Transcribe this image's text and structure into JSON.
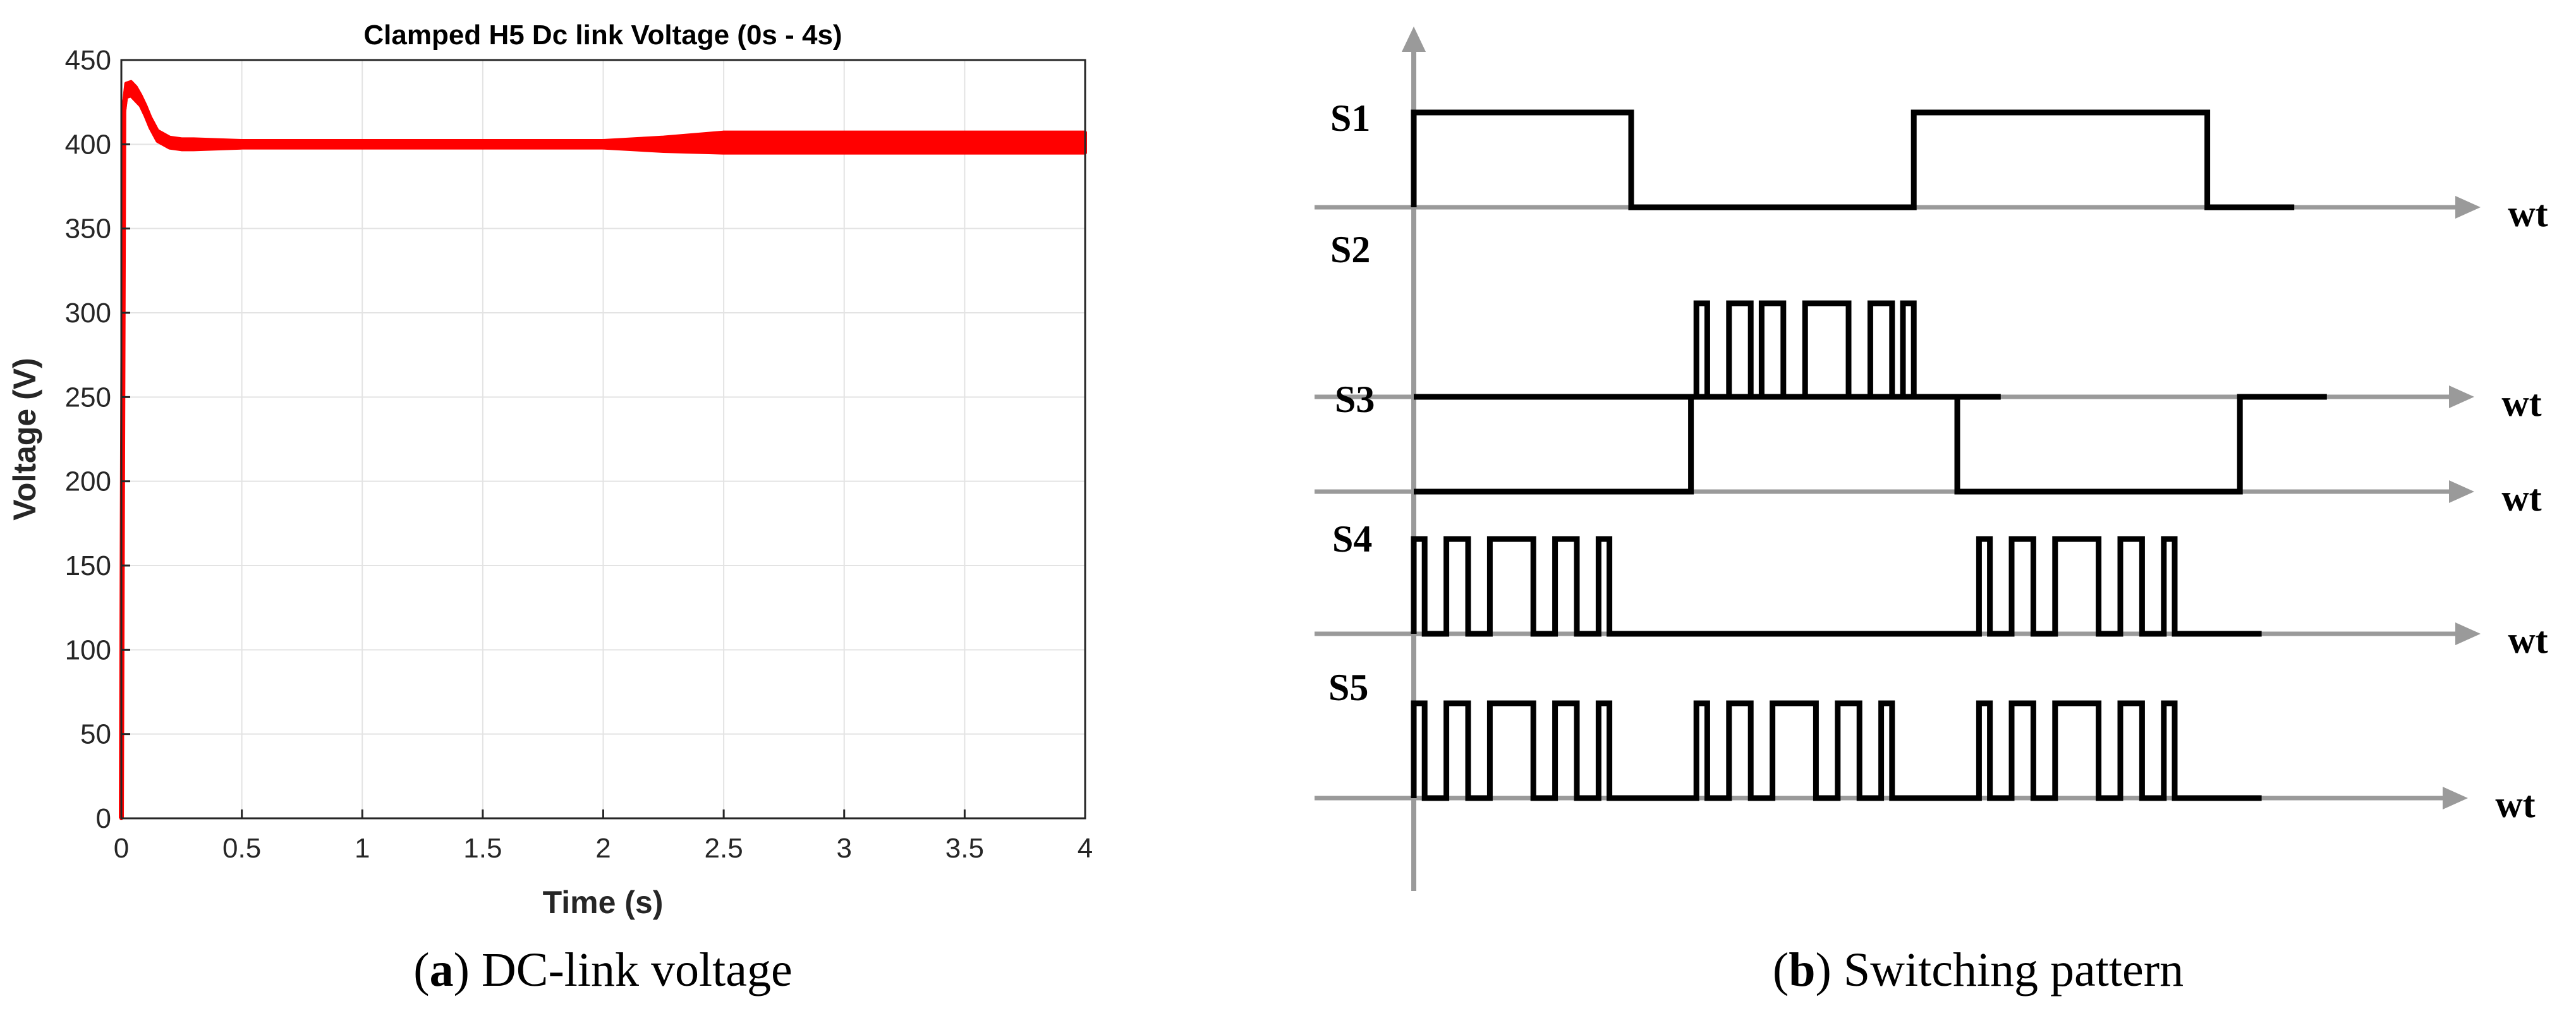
{
  "figure": {
    "panel_a": {
      "caption_letter": "a",
      "caption_text": "DC-link voltage"
    },
    "panel_b": {
      "caption_letter": "b",
      "caption_text": "Switching pattern"
    }
  },
  "chart_data": [
    {
      "type": "line",
      "title": "Clamped H5 Dc link Voltage (0s - 4s)",
      "xlabel": "Time (s)",
      "ylabel": "Voltage (V)",
      "xlim": [
        0,
        4
      ],
      "ylim": [
        0,
        450
      ],
      "xticks": [
        0,
        0.5,
        1,
        1.5,
        2,
        2.5,
        3,
        3.5,
        4
      ],
      "xtick_labels": [
        "0",
        "0.5",
        "1",
        "1.5",
        "2",
        "2.5",
        "3",
        "3.5",
        "4"
      ],
      "yticks": [
        0,
        50,
        100,
        150,
        200,
        250,
        300,
        350,
        400,
        450
      ],
      "ytick_labels": [
        "0",
        "50",
        "100",
        "150",
        "200",
        "250",
        "300",
        "350",
        "400",
        "450"
      ],
      "grid": true,
      "color": "#ff0000",
      "series": [
        {
          "x": [
            0,
            0.01,
            0.02,
            0.04,
            0.06,
            0.08,
            0.1,
            0.12,
            0.15,
            0.2,
            0.25,
            0.3,
            0.5,
            1,
            1.5,
            2,
            2.25,
            2.5,
            3,
            3.5,
            4
          ],
          "y": [
            0,
            420,
            432,
            433,
            430,
            426,
            420,
            413,
            405,
            401,
            400,
            400,
            400,
            400,
            400,
            400,
            400,
            401,
            401,
            401,
            401
          ],
          "ripple": [
            0,
            3,
            4,
            4,
            4,
            3,
            3,
            3,
            3,
            3,
            3,
            3,
            2,
            2,
            2,
            2,
            4,
            6,
            6,
            6,
            6
          ]
        }
      ]
    },
    {
      "type": "diagram",
      "axis_label": "wt",
      "signals": [
        {
          "name": "S1",
          "levels": [
            [
              0,
              1
            ],
            [
              0.2,
              0
            ],
            [
              0.46,
              1
            ],
            [
              0.73,
              0
            ]
          ]
        },
        {
          "name": "S2",
          "levels": [
            [
              0,
              0
            ],
            [
              0.26,
              1
            ],
            [
              0.27,
              0
            ],
            [
              0.29,
              1
            ],
            [
              0.31,
              0
            ],
            [
              0.32,
              1
            ],
            [
              0.34,
              0
            ],
            [
              0.36,
              1
            ],
            [
              0.4,
              0
            ],
            [
              0.42,
              1
            ],
            [
              0.44,
              0
            ],
            [
              0.45,
              1
            ],
            [
              0.46,
              0
            ]
          ]
        },
        {
          "name": "S3",
          "levels": [
            [
              0,
              0
            ],
            [
              0.255,
              1
            ],
            [
              0.5,
              0
            ],
            [
              0.76,
              1
            ]
          ]
        },
        {
          "name": "S4",
          "levels": [
            [
              0,
              1
            ],
            [
              0.01,
              0
            ],
            [
              0.03,
              1
            ],
            [
              0.05,
              0
            ],
            [
              0.07,
              1
            ],
            [
              0.11,
              0
            ],
            [
              0.13,
              1
            ],
            [
              0.15,
              0
            ],
            [
              0.17,
              1
            ],
            [
              0.18,
              0
            ],
            [
              0.52,
              1
            ],
            [
              0.53,
              0
            ],
            [
              0.55,
              1
            ],
            [
              0.57,
              0
            ],
            [
              0.59,
              1
            ],
            [
              0.63,
              0
            ],
            [
              0.65,
              1
            ],
            [
              0.67,
              0
            ],
            [
              0.69,
              1
            ],
            [
              0.7,
              0
            ]
          ]
        },
        {
          "name": "S5",
          "levels": [
            [
              0,
              1
            ],
            [
              0.01,
              0
            ],
            [
              0.03,
              1
            ],
            [
              0.05,
              0
            ],
            [
              0.07,
              1
            ],
            [
              0.11,
              0
            ],
            [
              0.13,
              1
            ],
            [
              0.15,
              0
            ],
            [
              0.17,
              1
            ],
            [
              0.18,
              0
            ],
            [
              0.26,
              1
            ],
            [
              0.27,
              0
            ],
            [
              0.29,
              1
            ],
            [
              0.31,
              0
            ],
            [
              0.33,
              1
            ],
            [
              0.37,
              0
            ],
            [
              0.39,
              1
            ],
            [
              0.41,
              0
            ],
            [
              0.43,
              1
            ],
            [
              0.44,
              0
            ],
            [
              0.52,
              1
            ],
            [
              0.53,
              0
            ],
            [
              0.55,
              1
            ],
            [
              0.57,
              0
            ],
            [
              0.59,
              1
            ],
            [
              0.63,
              0
            ],
            [
              0.65,
              1
            ],
            [
              0.67,
              0
            ],
            [
              0.69,
              1
            ],
            [
              0.7,
              0
            ]
          ]
        }
      ]
    }
  ]
}
